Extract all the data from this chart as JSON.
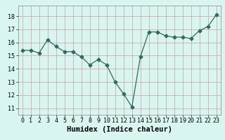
{
  "x": [
    0,
    1,
    2,
    3,
    4,
    5,
    6,
    7,
    8,
    9,
    10,
    11,
    12,
    13,
    14,
    15,
    16,
    17,
    18,
    19,
    20,
    21,
    22,
    23
  ],
  "y": [
    15.4,
    15.4,
    15.2,
    16.2,
    15.7,
    15.3,
    15.3,
    14.9,
    14.3,
    14.7,
    14.3,
    13.0,
    12.1,
    11.1,
    14.9,
    16.8,
    16.8,
    16.5,
    16.4,
    16.4,
    16.3,
    16.9,
    17.2,
    18.1
  ],
  "line_color": "#2e6b5e",
  "marker": "D",
  "marker_size": 2.5,
  "bg_color": "#d9f5f0",
  "grid_color": "#c0d8d4",
  "grid_color_minor": "#e0ecea",
  "xlabel": "Humidex (Indice chaleur)",
  "xlabel_fontsize": 7.5,
  "tick_fontsize": 6,
  "ylim": [
    10.5,
    18.8
  ],
  "xlim": [
    -0.5,
    23.5
  ],
  "yticks": [
    11,
    12,
    13,
    14,
    15,
    16,
    17,
    18
  ],
  "xticks": [
    0,
    1,
    2,
    3,
    4,
    5,
    6,
    7,
    8,
    9,
    10,
    11,
    12,
    13,
    14,
    15,
    16,
    17,
    18,
    19,
    20,
    21,
    22,
    23
  ]
}
